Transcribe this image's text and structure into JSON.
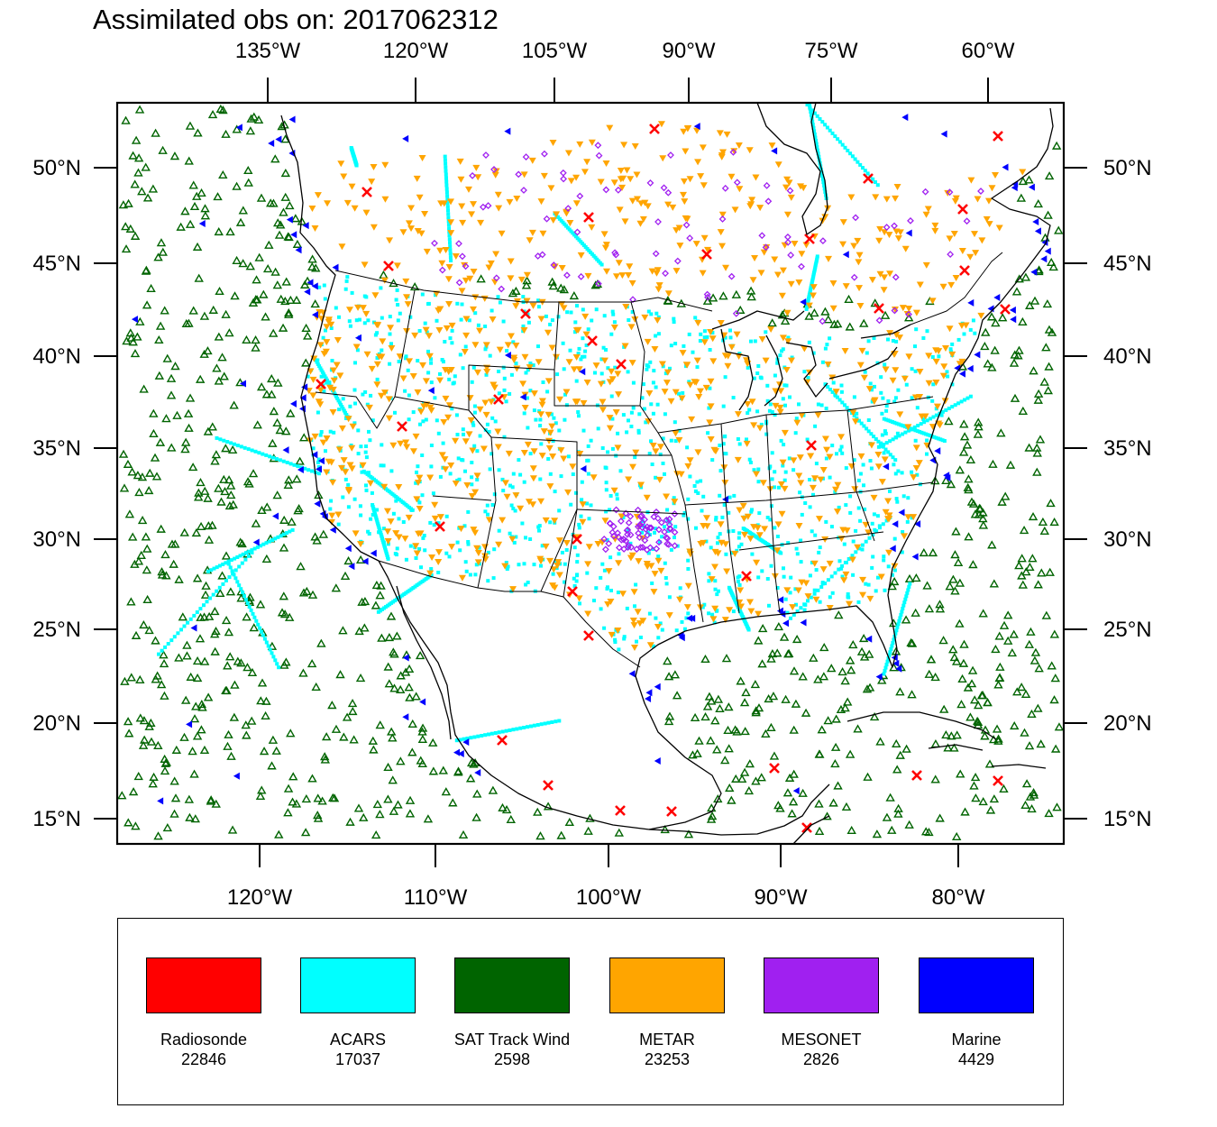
{
  "title": "Assimilated obs on: 2017062312",
  "top_axis": [
    "135°W",
    "120°W",
    "105°W",
    "90°W",
    "75°W",
    "60°W"
  ],
  "bottom_axis": [
    "120°W",
    "110°W",
    "100°W",
    "90°W",
    "80°W"
  ],
  "lat_axis": [
    "50°N",
    "45°N",
    "40°N",
    "35°N",
    "30°N",
    "25°N",
    "20°N",
    "15°N"
  ],
  "legend": [
    {
      "label": "Radiosonde",
      "count": "22846",
      "color": "#ff0000"
    },
    {
      "label": "ACARS",
      "count": "17037",
      "color": "#00ffff"
    },
    {
      "label": "SAT Track Wind",
      "count": "2598",
      "color": "#006400"
    },
    {
      "label": "METAR",
      "count": "23253",
      "color": "#ffa500"
    },
    {
      "label": "MESONET",
      "count": "2826",
      "color": "#a020f0"
    },
    {
      "label": "Marine",
      "count": "4429",
      "color": "#0000ff"
    }
  ],
  "map": {
    "extent": {
      "lon": [
        -128,
        -74
      ],
      "lat": [
        14,
        54
      ]
    },
    "marker_icons": {
      "Radiosonde": "red-x-marker",
      "ACARS": "cyan-dot-marker",
      "SAT Track Wind": "green-open-triangle-marker",
      "METAR": "orange-down-triangle-marker",
      "MESONET": "purple-diamond-marker",
      "Marine": "blue-left-triangle-marker"
    }
  }
}
